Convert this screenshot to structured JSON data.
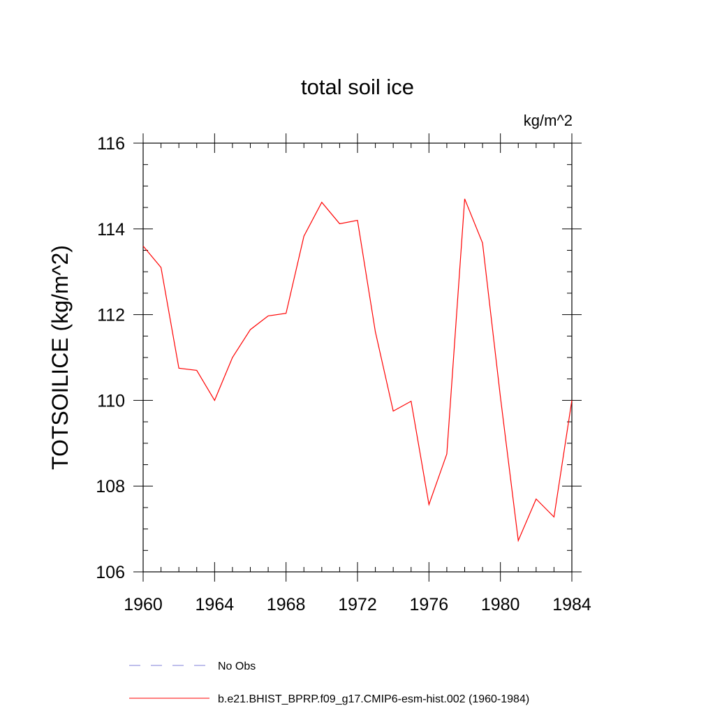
{
  "chart_data": {
    "type": "line",
    "title": "total soil ice",
    "units_label": "kg/m^2",
    "xlabel": "",
    "ylabel": "TOTSOILICE  (kg/m^2)",
    "xlim": [
      1960,
      1984
    ],
    "ylim": [
      106,
      116
    ],
    "x_ticks": [
      1960,
      1964,
      1968,
      1972,
      1976,
      1980,
      1984
    ],
    "y_ticks": [
      106,
      108,
      110,
      112,
      114,
      116
    ],
    "x_tick_labels": [
      "1960",
      "1964",
      "1968",
      "1972",
      "1976",
      "1980",
      "1984"
    ],
    "y_tick_labels": [
      "106",
      "108",
      "110",
      "112",
      "114",
      "116"
    ],
    "grid": false,
    "legend_position": "bottom",
    "series": [
      {
        "name": "b.e21.BHIST_BPRP.f09_g17.CMIP6-esm-hist.002 (1960-1984)",
        "color": "#ff0000",
        "style": "solid",
        "x": [
          1960,
          1961,
          1962,
          1963,
          1964,
          1965,
          1966,
          1967,
          1968,
          1969,
          1970,
          1971,
          1972,
          1973,
          1974,
          1975,
          1976,
          1977,
          1978,
          1979,
          1980,
          1981,
          1982,
          1983,
          1984
        ],
        "y": [
          113.6,
          113.1,
          110.75,
          110.7,
          110.0,
          111.0,
          111.65,
          111.97,
          112.03,
          113.83,
          114.62,
          114.12,
          114.2,
          111.6,
          109.75,
          109.98,
          107.57,
          108.75,
          114.7,
          113.67,
          110.08,
          106.73,
          107.7,
          107.28,
          110.0
        ]
      }
    ],
    "legend": [
      {
        "label": "No Obs",
        "color": "#7f7fd9",
        "style": "dashed"
      },
      {
        "label": "b.e21.BHIST_BPRP.f09_g17.CMIP6-esm-hist.002 (1960-1984)",
        "color": "#ff0000",
        "style": "solid"
      }
    ]
  }
}
